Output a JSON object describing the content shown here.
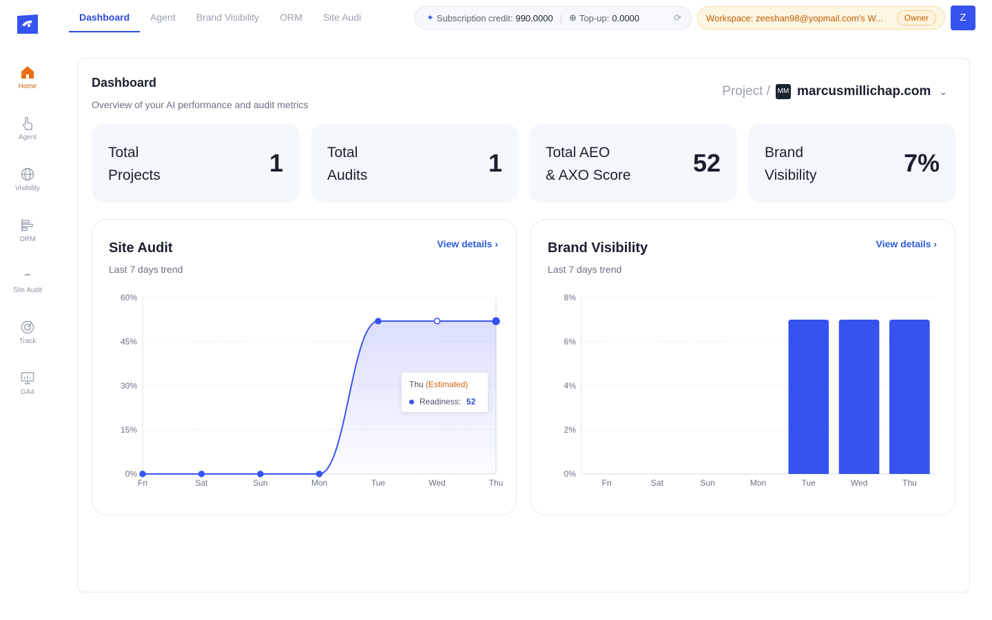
{
  "nav": {
    "tabs": [
      {
        "label": "Dashboard",
        "active": true
      },
      {
        "label": "Agent",
        "active": false
      },
      {
        "label": "Brand Visibility",
        "active": false
      },
      {
        "label": "ORM",
        "active": false
      },
      {
        "label": "Site Audi",
        "active": false
      }
    ],
    "subscription_label": "Subscription credit:",
    "subscription_value": "990.0000",
    "topup_label": "Top-up:",
    "topup_value": "0.0000",
    "workspace_text": "Workspace: zeeshan98@yopmail.com's W...",
    "owner_badge": "Owner",
    "avatar_letter": "Z"
  },
  "sidebar": {
    "items": [
      {
        "label": "Home",
        "icon": "home-icon",
        "active": true
      },
      {
        "label": "Agent",
        "icon": "hand-pointer-icon",
        "active": false
      },
      {
        "label": "Visibility",
        "icon": "globe-icon",
        "active": false
      },
      {
        "label": "ORM",
        "icon": "bars-icon",
        "active": false
      },
      {
        "label": "Site Audit",
        "icon": "gauge-icon",
        "active": false
      },
      {
        "label": "Track",
        "icon": "target-icon",
        "active": false
      },
      {
        "label": "GA4",
        "icon": "presentation-icon",
        "active": false
      }
    ]
  },
  "header": {
    "title": "Dashboard",
    "subtitle": "Overview of your AI performance and audit metrics",
    "project_label": "Project /",
    "project_initials": "MM",
    "project_name": "marcusmillichap.com"
  },
  "stats": [
    {
      "line1": "Total",
      "line2": "Projects",
      "value": "1"
    },
    {
      "line1": "Total",
      "line2": "Audits",
      "value": "1"
    },
    {
      "line1": "Total AEO",
      "line2": "& AXO Score",
      "value": "52"
    },
    {
      "line1": "Brand",
      "line2": "Visibility",
      "value": "7%"
    }
  ],
  "site_audit": {
    "title": "Site Audit",
    "subtitle": "Last 7 days trend",
    "link": "View details",
    "tooltip": {
      "day": "Thu",
      "tag": "(Estimated)",
      "series": "Readiness:",
      "value": "52"
    }
  },
  "brand_visibility": {
    "title": "Brand Visibility",
    "subtitle": "Last 7 days trend",
    "link": "View details"
  },
  "colors": {
    "accent": "#3653f0",
    "orange": "#d2600a"
  },
  "chart_data": [
    {
      "type": "area",
      "categories": [
        "Fri",
        "Sat",
        "Sun",
        "Mon",
        "Tue",
        "Wed",
        "Thu"
      ],
      "series": [
        {
          "name": "Readiness",
          "values": [
            0,
            0,
            0,
            0,
            52,
            52,
            52
          ]
        }
      ],
      "y_ticks": [
        "0%",
        "15%",
        "30%",
        "45%",
        "60%"
      ],
      "ylim": [
        0,
        60
      ]
    },
    {
      "type": "bar",
      "categories": [
        "Fri",
        "Sat",
        "Sun",
        "Mon",
        "Tue",
        "Wed",
        "Thu"
      ],
      "values": [
        0,
        0,
        0,
        0,
        7,
        7,
        7
      ],
      "y_ticks": [
        "0%",
        "2%",
        "4%",
        "6%",
        "8%"
      ],
      "ylim": [
        0,
        8
      ]
    }
  ]
}
